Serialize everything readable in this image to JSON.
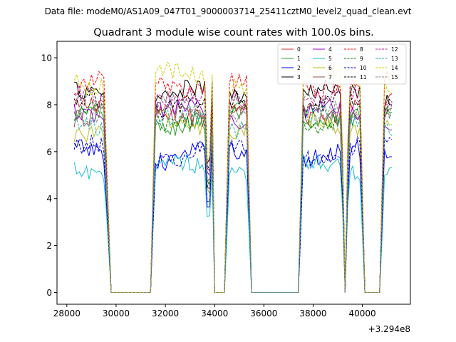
{
  "header": {
    "data_file": "Data file: modeM0/AS1A09_047T01_9000003714_25411cztM0_level2_quad_clean.evt"
  },
  "chart_data": {
    "type": "line",
    "title": "Quadrant 3 module wise count rates with 100.0s bins.",
    "xlabel": "",
    "ylabel": "",
    "x_offset_label": "+3.294e8",
    "xlim": [
      27600,
      41950
    ],
    "ylim": [
      -0.5,
      10.7
    ],
    "grid": false,
    "legend_position": "top-right",
    "x_ticks": [
      28000,
      30000,
      32000,
      34000,
      36000,
      38000,
      40000
    ],
    "x_tick_labels": [
      "28000",
      "30000",
      "32000",
      "34000",
      "36000",
      "38000",
      "40000"
    ],
    "y_ticks": [
      0,
      2,
      4,
      6,
      8,
      10
    ],
    "y_tick_labels": [
      "0",
      "2",
      "4",
      "6",
      "8",
      "10"
    ],
    "bin_size_s": 100,
    "x_start": 28300,
    "x_end": 41200,
    "intervals": [
      {
        "start": 28300,
        "end": 29500,
        "ramp_to": 29800
      },
      {
        "start": 31600,
        "end": 33600,
        "ramp_from": 31400
      },
      {
        "start": 33700,
        "end": 33900,
        "ramp_to": 34000
      },
      {
        "start": 34600,
        "end": 35300,
        "ramp_from": 34400,
        "ramp_to": 35500
      },
      {
        "start": 37600,
        "end": 39200,
        "ramp_from": 37400
      },
      {
        "start": 39400,
        "end": 39900,
        "ramp_from": 39300,
        "ramp_to": 40100
      },
      {
        "start": 40900,
        "end": 41200,
        "ramp_from": 40700
      }
    ],
    "dips": [
      {
        "center": 33750,
        "depth": 0.55
      },
      {
        "center": 39300,
        "depth": 0.95
      }
    ],
    "series": [
      {
        "name": "0",
        "color": "#d62728",
        "dash": "solid",
        "level": 7.8
      },
      {
        "name": "1",
        "color": "#2ca02c",
        "dash": "solid",
        "level": 7.3
      },
      {
        "name": "2",
        "color": "#0000ff",
        "dash": "solid",
        "level": 5.8
      },
      {
        "name": "3",
        "color": "#000000",
        "dash": "solid",
        "level": 8.4
      },
      {
        "name": "4",
        "color": "#9400d3",
        "dash": "solid",
        "level": 7.6
      },
      {
        "name": "5",
        "color": "#17becf",
        "dash": "solid",
        "level": 5.3
      },
      {
        "name": "6",
        "color": "#bcbd22",
        "dash": "solid",
        "level": 7.1
      },
      {
        "name": "7",
        "color": "#8c564b",
        "dash": "solid",
        "level": 7.7
      },
      {
        "name": "8",
        "color": "#ff0000",
        "dash": "dashed",
        "level": 8.9
      },
      {
        "name": "9",
        "color": "#008000",
        "dash": "dashed",
        "level": 7.5
      },
      {
        "name": "10",
        "color": "#0000cd",
        "dash": "dashed",
        "level": 6.0
      },
      {
        "name": "11",
        "color": "#000000",
        "dash": "dashed",
        "level": 8.0
      },
      {
        "name": "12",
        "color": "#c71585",
        "dash": "dashed",
        "level": 8.2
      },
      {
        "name": "13",
        "color": "#20b2aa",
        "dash": "dashed",
        "level": 7.2
      },
      {
        "name": "14",
        "color": "#cccc00",
        "dash": "dashed",
        "level": 9.1
      },
      {
        "name": "15",
        "color": "#808080",
        "dash": "dashed",
        "level": 7.9
      }
    ]
  }
}
